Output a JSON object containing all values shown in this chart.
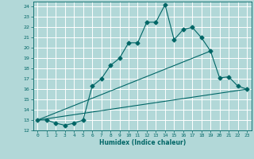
{
  "xlabel": "Humidex (Indice chaleur)",
  "bg_color": "#b2d8d8",
  "grid_color": "#ffffff",
  "line_color": "#006666",
  "xlim": [
    -0.5,
    23.5
  ],
  "ylim": [
    12,
    24.5
  ],
  "xticks": [
    0,
    1,
    2,
    3,
    4,
    5,
    6,
    7,
    8,
    9,
    10,
    11,
    12,
    13,
    14,
    15,
    16,
    17,
    18,
    19,
    20,
    21,
    22,
    23
  ],
  "yticks": [
    12,
    13,
    14,
    15,
    16,
    17,
    18,
    19,
    20,
    21,
    22,
    23,
    24
  ],
  "line1_x": [
    0,
    1,
    2,
    3,
    4,
    5,
    6,
    7,
    8,
    9,
    10,
    11,
    12,
    13,
    14,
    15,
    16,
    17,
    18,
    19,
    20,
    21,
    22,
    23
  ],
  "line1_y": [
    13.0,
    13.0,
    12.7,
    12.5,
    12.7,
    13.0,
    16.3,
    17.0,
    18.3,
    19.0,
    20.5,
    20.5,
    22.5,
    22.5,
    24.2,
    20.8,
    21.8,
    22.0,
    21.0,
    19.7,
    17.1,
    17.2,
    16.3,
    16.0
  ],
  "line2_x": [
    0,
    23
  ],
  "line2_y": [
    13.0,
    16.0
  ],
  "line3_x": [
    0,
    19
  ],
  "line3_y": [
    13.0,
    19.7
  ],
  "marker": "D",
  "marker_size": 2.5
}
